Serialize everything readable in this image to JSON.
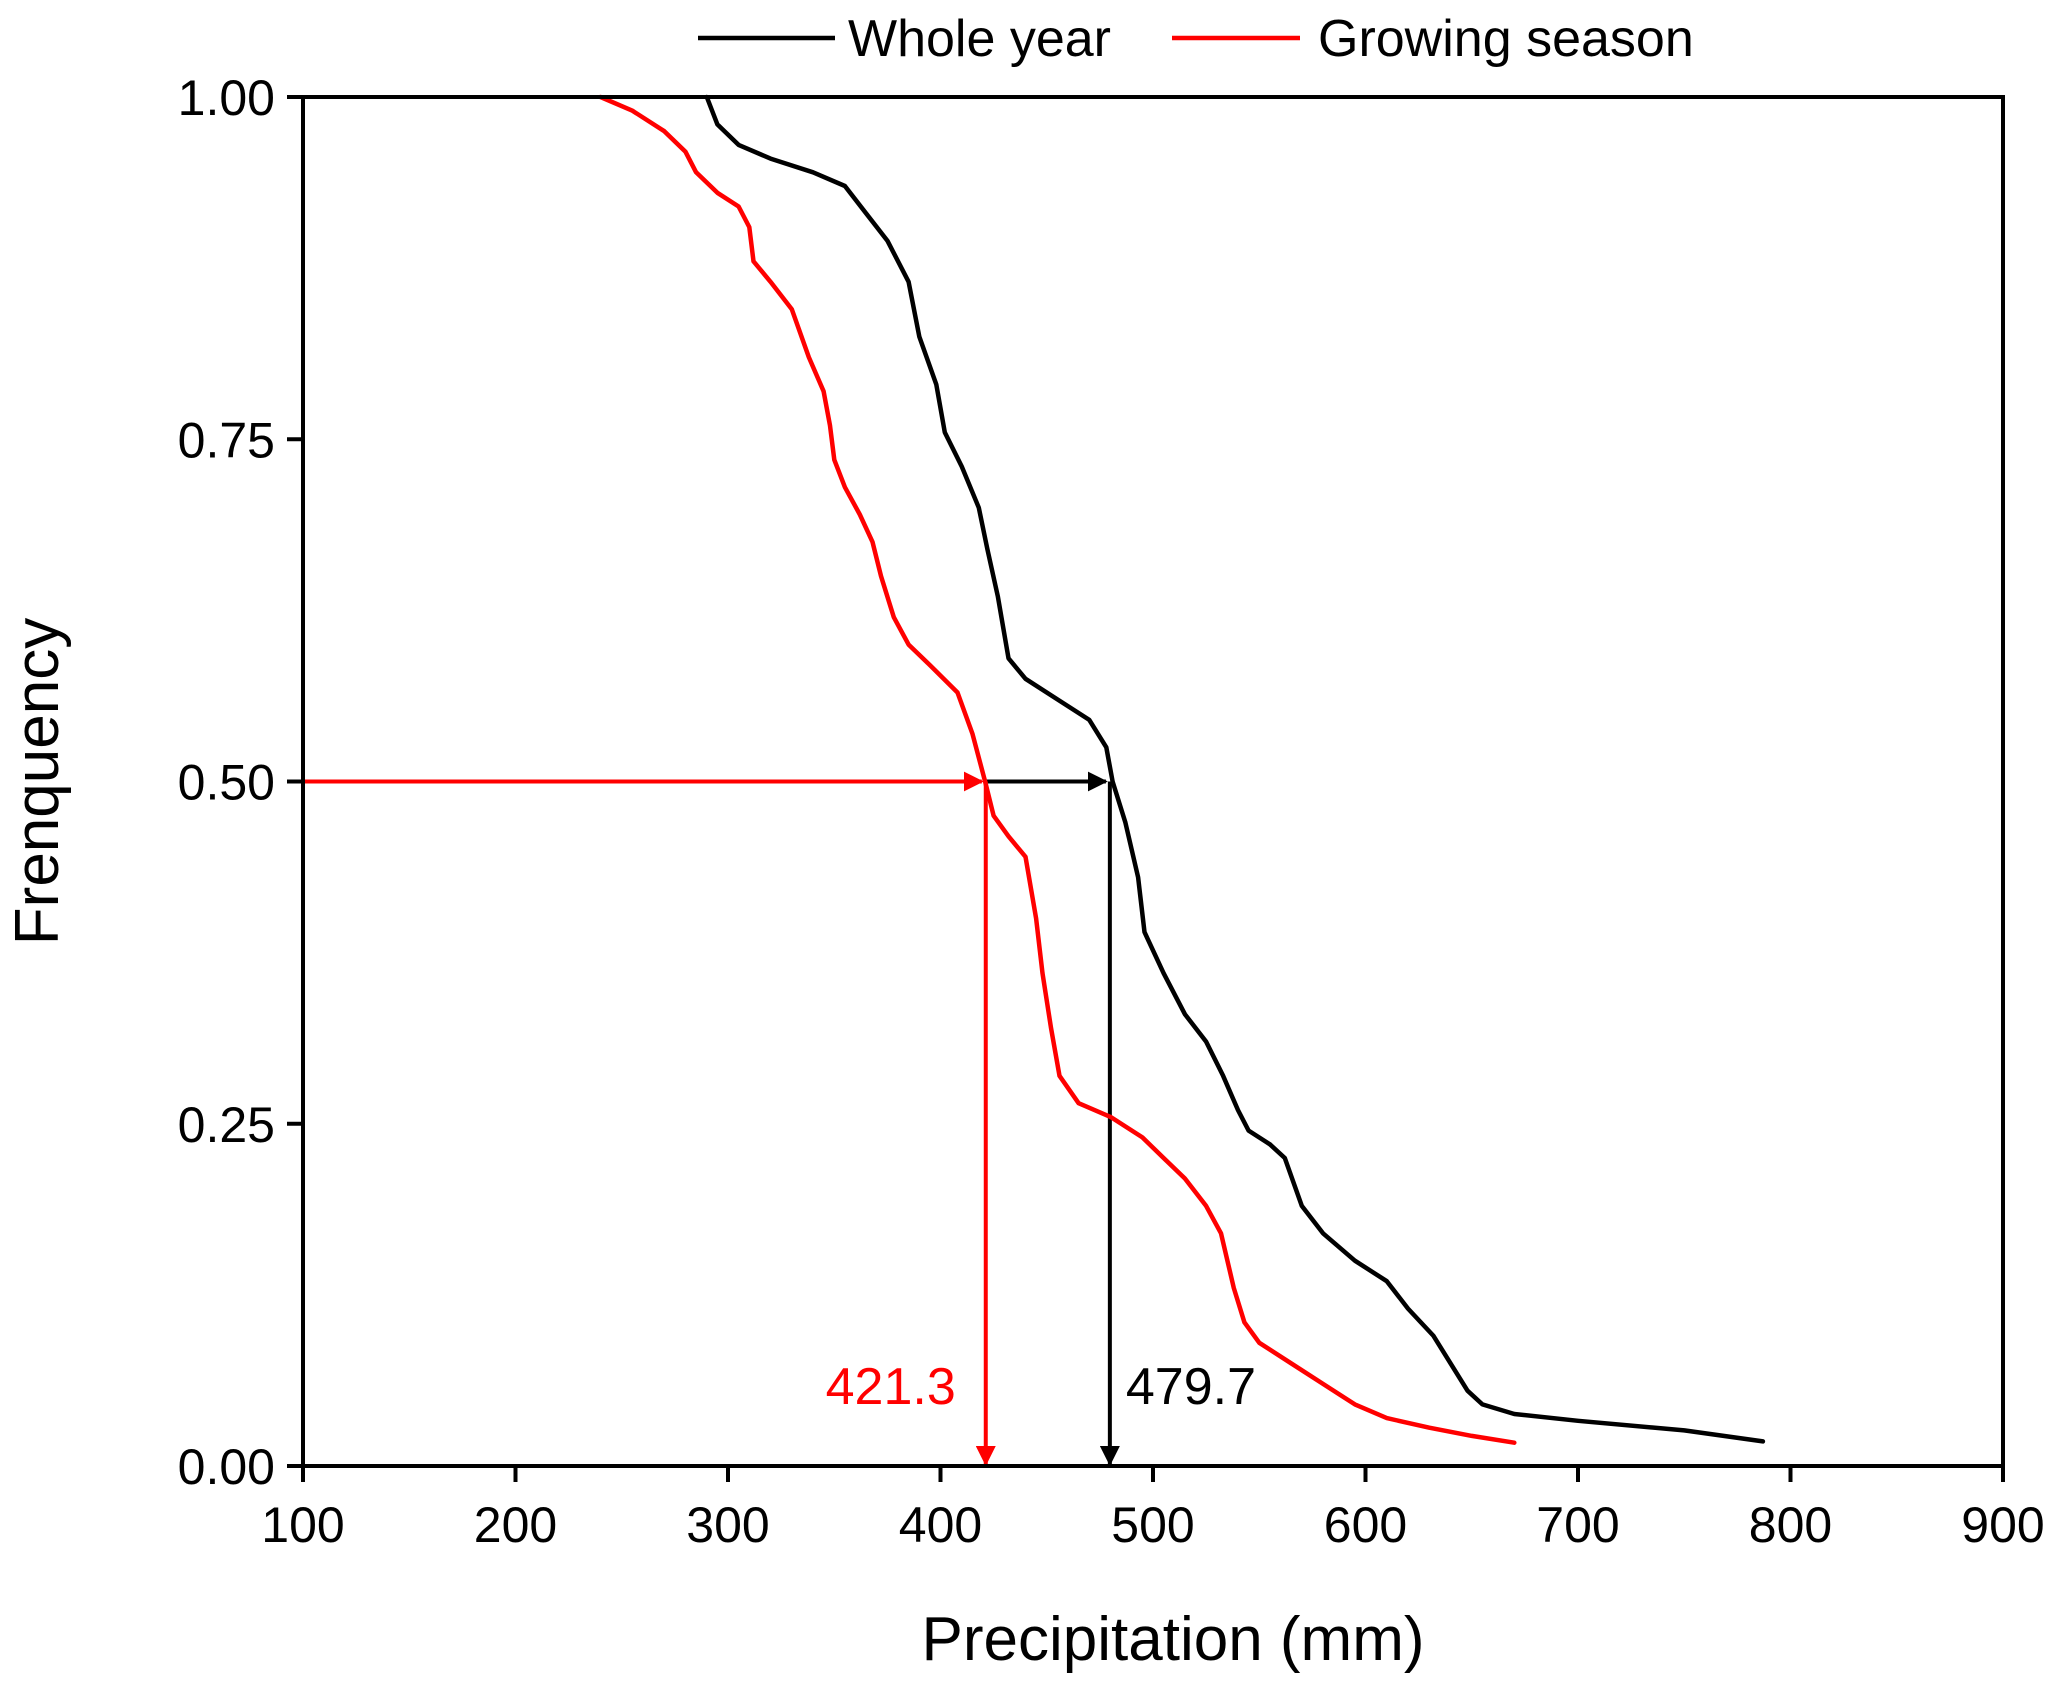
{
  "chart_data": {
    "type": "line",
    "title": "",
    "xlabel": "Precipitation (mm)",
    "ylabel": "Frenquency",
    "xlim": [
      100,
      900
    ],
    "ylim": [
      0,
      1
    ],
    "xticks": [
      "100",
      "200",
      "300",
      "400",
      "500",
      "600",
      "700",
      "800",
      "900"
    ],
    "yticks": [
      "0.00",
      "0.25",
      "0.50",
      "0.75",
      "1.00"
    ],
    "legend_position": "top",
    "series": [
      {
        "name": "Whole year",
        "color": "#000000",
        "points": [
          [
            290,
            1.0
          ],
          [
            295,
            0.98
          ],
          [
            305,
            0.965
          ],
          [
            320,
            0.955
          ],
          [
            340,
            0.945
          ],
          [
            355,
            0.935
          ],
          [
            365,
            0.915
          ],
          [
            375,
            0.895
          ],
          [
            385,
            0.865
          ],
          [
            390,
            0.825
          ],
          [
            398,
            0.79
          ],
          [
            402,
            0.755
          ],
          [
            410,
            0.73
          ],
          [
            418,
            0.7
          ],
          [
            422,
            0.67
          ],
          [
            427,
            0.635
          ],
          [
            432,
            0.59
          ],
          [
            440,
            0.575
          ],
          [
            455,
            0.56
          ],
          [
            470,
            0.545
          ],
          [
            478,
            0.525
          ],
          [
            481,
            0.5
          ],
          [
            487,
            0.47
          ],
          [
            493,
            0.43
          ],
          [
            496,
            0.39
          ],
          [
            505,
            0.36
          ],
          [
            515,
            0.33
          ],
          [
            525,
            0.31
          ],
          [
            533,
            0.285
          ],
          [
            540,
            0.26
          ],
          [
            545,
            0.245
          ],
          [
            555,
            0.235
          ],
          [
            562,
            0.225
          ],
          [
            570,
            0.19
          ],
          [
            580,
            0.17
          ],
          [
            595,
            0.15
          ],
          [
            610,
            0.135
          ],
          [
            620,
            0.115
          ],
          [
            632,
            0.095
          ],
          [
            640,
            0.075
          ],
          [
            648,
            0.055
          ],
          [
            655,
            0.045
          ],
          [
            670,
            0.038
          ],
          [
            700,
            0.033
          ],
          [
            750,
            0.026
          ],
          [
            787,
            0.018
          ]
        ]
      },
      {
        "name": "Growing season",
        "color": "#ff0000",
        "points": [
          [
            240,
            1.0
          ],
          [
            255,
            0.99
          ],
          [
            270,
            0.975
          ],
          [
            280,
            0.96
          ],
          [
            285,
            0.945
          ],
          [
            295,
            0.93
          ],
          [
            305,
            0.92
          ],
          [
            310,
            0.905
          ],
          [
            312,
            0.88
          ],
          [
            320,
            0.865
          ],
          [
            330,
            0.845
          ],
          [
            338,
            0.81
          ],
          [
            345,
            0.785
          ],
          [
            348,
            0.76
          ],
          [
            350,
            0.735
          ],
          [
            355,
            0.715
          ],
          [
            362,
            0.695
          ],
          [
            368,
            0.675
          ],
          [
            372,
            0.65
          ],
          [
            378,
            0.62
          ],
          [
            385,
            0.6
          ],
          [
            395,
            0.585
          ],
          [
            408,
            0.565
          ],
          [
            415,
            0.535
          ],
          [
            421,
            0.5
          ],
          [
            425,
            0.475
          ],
          [
            432,
            0.46
          ],
          [
            440,
            0.445
          ],
          [
            445,
            0.4
          ],
          [
            448,
            0.36
          ],
          [
            452,
            0.32
          ],
          [
            456,
            0.285
          ],
          [
            465,
            0.265
          ],
          [
            480,
            0.255
          ],
          [
            495,
            0.24
          ],
          [
            505,
            0.225
          ],
          [
            515,
            0.21
          ],
          [
            525,
            0.19
          ],
          [
            532,
            0.17
          ],
          [
            538,
            0.13
          ],
          [
            543,
            0.105
          ],
          [
            550,
            0.09
          ],
          [
            565,
            0.075
          ],
          [
            580,
            0.06
          ],
          [
            595,
            0.045
          ],
          [
            610,
            0.035
          ],
          [
            630,
            0.028
          ],
          [
            650,
            0.022
          ],
          [
            670,
            0.017
          ]
        ]
      }
    ],
    "annotations": [
      {
        "text": "421.3",
        "x": 421.3,
        "y": 0.5,
        "color": "#ff0000"
      },
      {
        "text": "479.7",
        "x": 479.7,
        "y": 0.5,
        "color": "#000000"
      }
    ]
  }
}
